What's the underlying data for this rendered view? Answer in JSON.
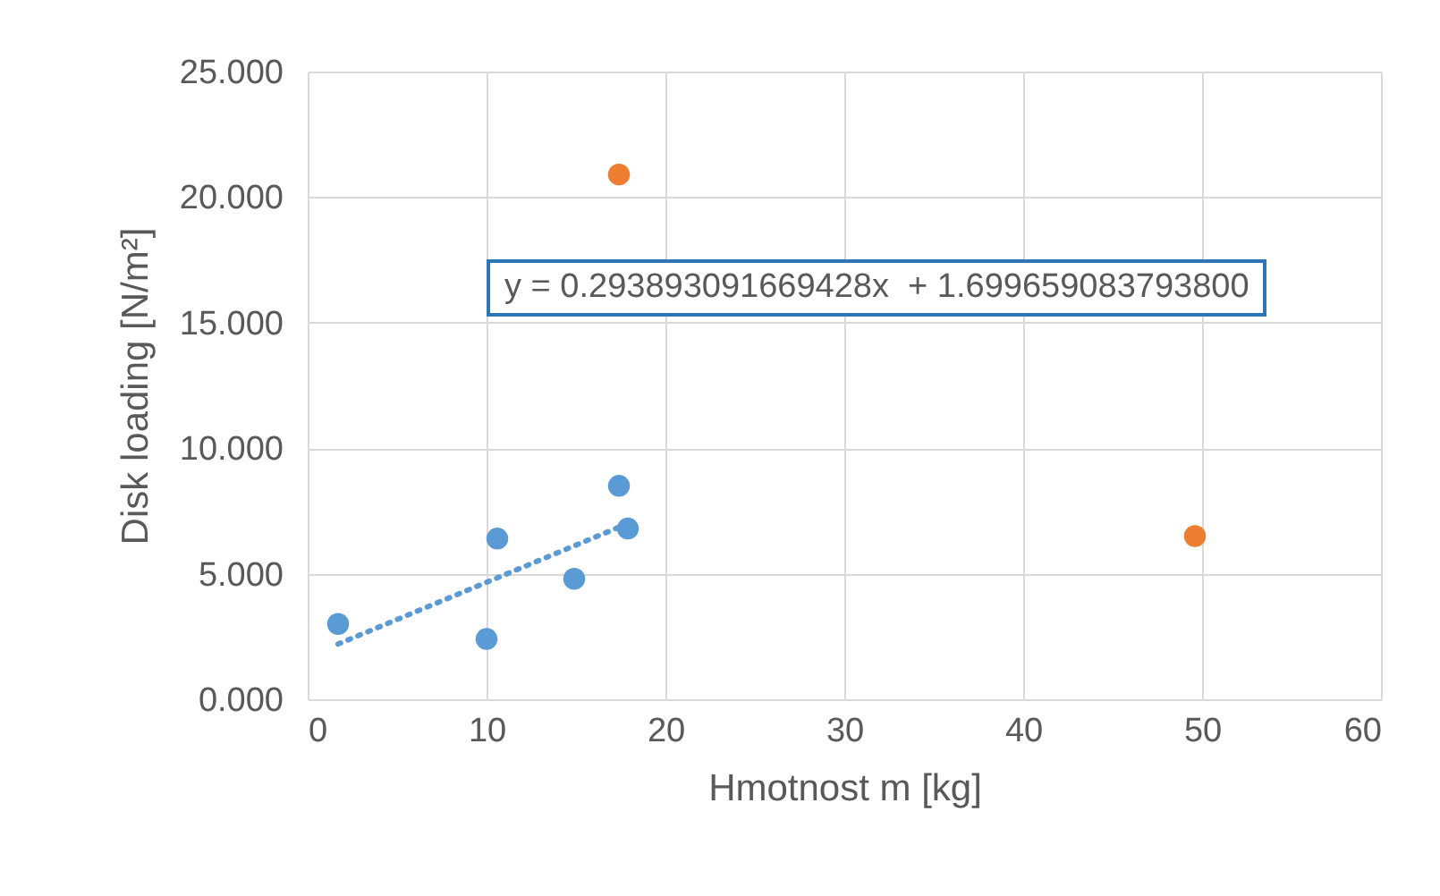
{
  "chart_data": {
    "type": "scatter",
    "xlabel": "Hmotnost m [kg]",
    "ylabel": "Disk loading [N/m²]",
    "xlim": [
      0,
      60
    ],
    "xticks": [
      0,
      10,
      20,
      30,
      40,
      50,
      60
    ],
    "ylim": [
      0,
      25
    ],
    "yticks": [
      {
        "value": 0,
        "label": "0.000"
      },
      {
        "value": 5,
        "label": "5.000"
      },
      {
        "value": 10,
        "label": "10.000"
      },
      {
        "value": 15,
        "label": "15.000"
      },
      {
        "value": 20,
        "label": "20.000"
      },
      {
        "value": 25,
        "label": "25.000"
      }
    ],
    "grid": true,
    "marker": "circle",
    "annotations": [
      "y = 0.293893091669428x  + 1.699659083793800"
    ],
    "series": [
      {
        "color": "#5b9bd5",
        "x": [
          1.7,
          10.0,
          10.6,
          14.9,
          17.4,
          17.9
        ],
        "values": [
          3.0,
          2.4,
          6.4,
          4.8,
          8.5,
          6.8
        ]
      },
      {
        "color": "#ed7d31",
        "x": [
          17.4,
          49.6
        ],
        "values": [
          20.9,
          6.5
        ]
      },
      {
        "type": "line",
        "color": "#5b9bd5",
        "line_style": "dotted",
        "marker": "none",
        "x": [
          1.7,
          17.9
        ],
        "values": [
          2.2,
          7.0
        ]
      }
    ]
  }
}
